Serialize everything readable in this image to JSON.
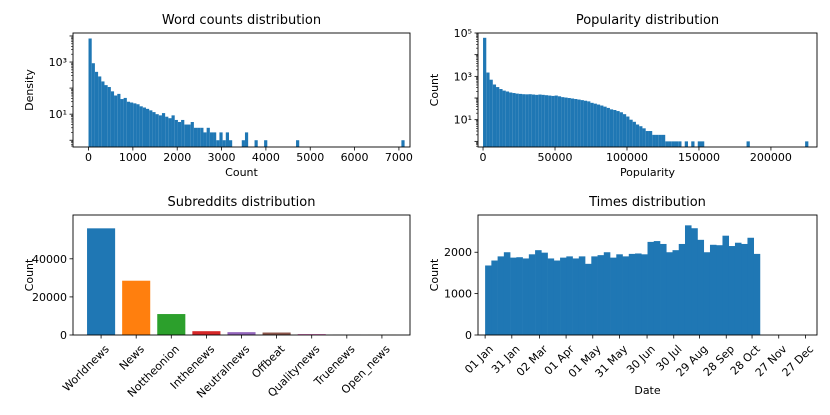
{
  "chart_data": [
    {
      "id": "word_counts",
      "type": "bar",
      "title": "Word counts distribution",
      "xlabel": "Count",
      "ylabel": "Density",
      "yscale": "log",
      "xlim": [
        -350,
        7250
      ],
      "ylim": [
        0.55,
        13000
      ],
      "xticks": [
        0,
        1000,
        2000,
        3000,
        4000,
        5000,
        6000,
        7000
      ],
      "xtick_labels": [
        "0",
        "1000",
        "2000",
        "3000",
        "4000",
        "5000",
        "6000",
        "7000"
      ],
      "yticks": [
        10,
        1000
      ],
      "ytick_labels": [
        "10¹",
        "10³"
      ],
      "bar_color": "#1f77b4",
      "bins": {
        "start": 0,
        "width": 72,
        "heights": [
          8000,
          900,
          420,
          280,
          180,
          130,
          110,
          75,
          52,
          60,
          38,
          42,
          30,
          28,
          26,
          24,
          20,
          18,
          16,
          14,
          12,
          10,
          9,
          11,
          8,
          7,
          9,
          6,
          5,
          6,
          4,
          4,
          5,
          3,
          3,
          3,
          2,
          3,
          2,
          2,
          1,
          2,
          1,
          2,
          1,
          1,
          1,
          1,
          1,
          2,
          1,
          1,
          1,
          1,
          1,
          1,
          1,
          1,
          1,
          1,
          1,
          1,
          1,
          1,
          1,
          1,
          1,
          1,
          1,
          1,
          1,
          1,
          1,
          1,
          1,
          1,
          1,
          1,
          1,
          1,
          1,
          1,
          1,
          1,
          1,
          1,
          1,
          1,
          1,
          1,
          1,
          1,
          1,
          1,
          1,
          1,
          1,
          1,
          1
        ],
        "present": [
          1,
          1,
          1,
          1,
          1,
          1,
          1,
          1,
          1,
          1,
          1,
          1,
          1,
          1,
          1,
          1,
          1,
          1,
          1,
          1,
          1,
          1,
          1,
          1,
          1,
          1,
          1,
          1,
          1,
          1,
          1,
          1,
          1,
          1,
          1,
          1,
          1,
          1,
          1,
          1,
          1,
          1,
          1,
          1,
          1,
          0,
          0,
          0,
          1,
          1,
          0,
          0,
          1,
          0,
          0,
          1,
          0,
          0,
          0,
          0,
          0,
          0,
          0,
          0,
          0,
          1,
          0,
          0,
          0,
          0,
          0,
          0,
          0,
          0,
          0,
          0,
          0,
          0,
          0,
          0,
          0,
          0,
          0,
          0,
          0,
          0,
          0,
          0,
          0,
          0,
          0,
          0,
          0,
          0,
          0,
          0,
          0,
          0,
          1
        ]
      }
    },
    {
      "id": "popularity",
      "type": "bar",
      "title": "Popularity distribution",
      "xlabel": "Popularity",
      "ylabel": "Count",
      "yscale": "log",
      "xlim": [
        -3500,
        232000
      ],
      "ylim": [
        0.55,
        100000
      ],
      "xticks": [
        0,
        50000,
        100000,
        150000,
        200000
      ],
      "xtick_labels": [
        "0",
        "50000",
        "100000",
        "150000",
        "200000"
      ],
      "yticks": [
        10,
        1000,
        100000
      ],
      "ytick_labels": [
        "10¹",
        "10³",
        "10⁵"
      ],
      "bar_color": "#1f77b4",
      "bins": {
        "start": 0,
        "width": 2260,
        "heights": [
          60000,
          1500,
          700,
          420,
          320,
          260,
          220,
          200,
          180,
          170,
          160,
          155,
          150,
          148,
          150,
          145,
          140,
          145,
          140,
          135,
          130,
          125,
          130,
          120,
          110,
          105,
          100,
          95,
          90,
          85,
          80,
          75,
          70,
          60,
          55,
          50,
          45,
          40,
          35,
          30,
          28,
          25,
          22,
          18,
          14,
          10,
          8,
          6,
          5,
          4,
          3,
          3,
          2,
          2,
          2,
          2,
          1,
          1,
          1,
          1,
          1,
          1,
          1,
          1,
          1,
          1,
          1,
          1,
          1,
          1,
          1,
          1,
          1,
          1,
          1,
          1,
          1,
          1,
          1,
          1,
          1,
          1,
          1,
          1,
          1,
          1,
          1,
          1,
          1,
          1,
          1,
          1,
          1,
          1,
          1,
          1,
          1,
          1,
          1,
          1
        ],
        "present": [
          1,
          1,
          1,
          1,
          1,
          1,
          1,
          1,
          1,
          1,
          1,
          1,
          1,
          1,
          1,
          1,
          1,
          1,
          1,
          1,
          1,
          1,
          1,
          1,
          1,
          1,
          1,
          1,
          1,
          1,
          1,
          1,
          1,
          1,
          1,
          1,
          1,
          1,
          1,
          1,
          1,
          1,
          1,
          1,
          1,
          1,
          1,
          1,
          1,
          1,
          1,
          1,
          1,
          1,
          1,
          1,
          1,
          1,
          1,
          1,
          1,
          0,
          1,
          0,
          1,
          0,
          1,
          1,
          0,
          0,
          0,
          0,
          0,
          0,
          0,
          0,
          0,
          0,
          0,
          0,
          0,
          1,
          0,
          0,
          0,
          0,
          0,
          0,
          0,
          0,
          0,
          0,
          0,
          0,
          0,
          0,
          0,
          0,
          0,
          1
        ]
      }
    },
    {
      "id": "subreddits",
      "type": "bar",
      "title": "Subreddits distribution",
      "xlabel": "",
      "ylabel": "Count",
      "ylim": [
        0,
        63000
      ],
      "yticks": [
        0,
        20000,
        40000
      ],
      "ytick_labels": [
        "0",
        "20000",
        "40000"
      ],
      "categories": [
        "Worldnews",
        "News",
        "Nottheonion",
        "Inthenews",
        "Neutralnews",
        "Offbeat",
        "Qualitynews",
        "Truenews",
        "Open_news"
      ],
      "values": [
        56000,
        28500,
        11000,
        2000,
        1500,
        1300,
        500,
        150,
        100
      ],
      "colors": [
        "#1f77b4",
        "#ff7f0e",
        "#2ca02c",
        "#d62728",
        "#9467bd",
        "#8c564b",
        "#e377c2",
        "#7f7f7f",
        "#bcbd22"
      ]
    },
    {
      "id": "times",
      "type": "bar",
      "title": "Times distribution",
      "xlabel": "Date",
      "ylabel": "Count",
      "ylim": [
        0,
        2900
      ],
      "yticks": [
        0,
        1000,
        2000
      ],
      "ytick_labels": [
        "0",
        "1000",
        "2000"
      ],
      "bar_color": "#1f77b4",
      "xlim_days": [
        -8,
        373
      ],
      "tick_days": [
        0,
        30,
        61,
        91,
        121,
        151,
        182,
        212,
        241,
        271,
        300,
        330,
        360
      ],
      "tick_labels": [
        "01 Jan",
        "31 Jan",
        "02 Mar",
        "01 Apr",
        "01 May",
        "31 May",
        "30 Jun",
        "30 Jul",
        "29 Aug",
        "28 Sep",
        "28 Oct",
        "27 Nov",
        "27 Dec"
      ],
      "bin_days": 7.02,
      "values": [
        1680,
        1800,
        1900,
        2000,
        1870,
        1880,
        1850,
        1950,
        2050,
        1990,
        1850,
        1800,
        1870,
        1900,
        1850,
        1900,
        1720,
        1900,
        1930,
        2000,
        1870,
        1950,
        1900,
        1960,
        1970,
        1950,
        2250,
        2270,
        2200,
        2000,
        2050,
        2200,
        2650,
        2580,
        2300,
        2000,
        2180,
        2170,
        2400,
        2150,
        2230,
        2200,
        2350,
        1960
      ]
    }
  ]
}
